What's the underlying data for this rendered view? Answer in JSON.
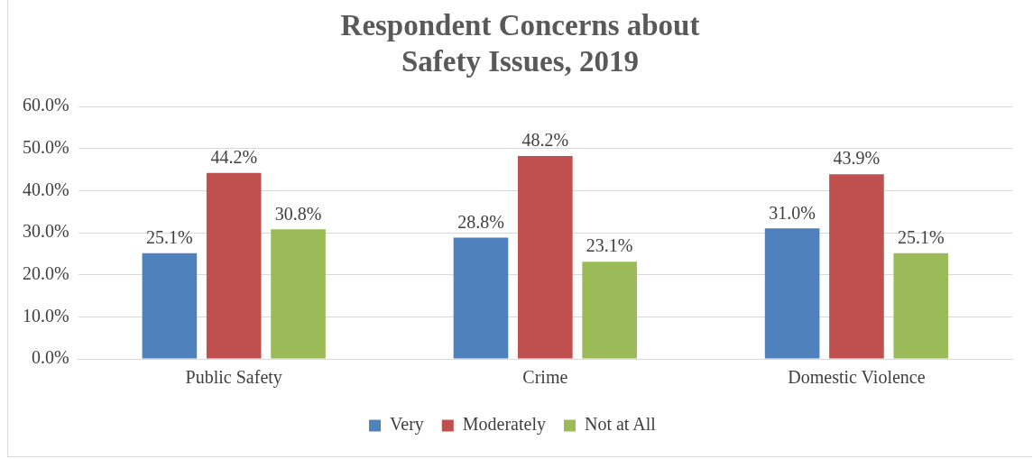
{
  "chart_data": {
    "type": "bar",
    "title": "Respondent Concerns about Safety Issues, 2019",
    "categories": [
      "Public Safety",
      "Crime",
      "Domestic Violence"
    ],
    "series": [
      {
        "name": "Very",
        "color": "#4f81bd",
        "values": [
          25.1,
          28.8,
          31.0
        ],
        "value_labels": [
          "25.1%",
          "28.8%",
          "31.0%"
        ]
      },
      {
        "name": "Moderately",
        "color": "#c0504d",
        "values": [
          44.2,
          48.2,
          43.9
        ],
        "value_labels": [
          "44.2%",
          "48.2%",
          "43.9%"
        ]
      },
      {
        "name": "Not at All",
        "color": "#9bbb59",
        "values": [
          30.8,
          23.1,
          25.1
        ],
        "value_labels": [
          "30.8%",
          "23.1%",
          "25.1%"
        ]
      }
    ],
    "ylim": [
      0,
      60
    ],
    "yticks": [
      {
        "value": 0,
        "label": "0.0%"
      },
      {
        "value": 10,
        "label": "10.0%"
      },
      {
        "value": 20,
        "label": "20.0%"
      },
      {
        "value": 30,
        "label": "30.0%"
      },
      {
        "value": 40,
        "label": "40.0%"
      },
      {
        "value": 50,
        "label": "50.0%"
      },
      {
        "value": 60,
        "label": "60.0%"
      }
    ],
    "grid": "y",
    "legend": "bottom"
  }
}
